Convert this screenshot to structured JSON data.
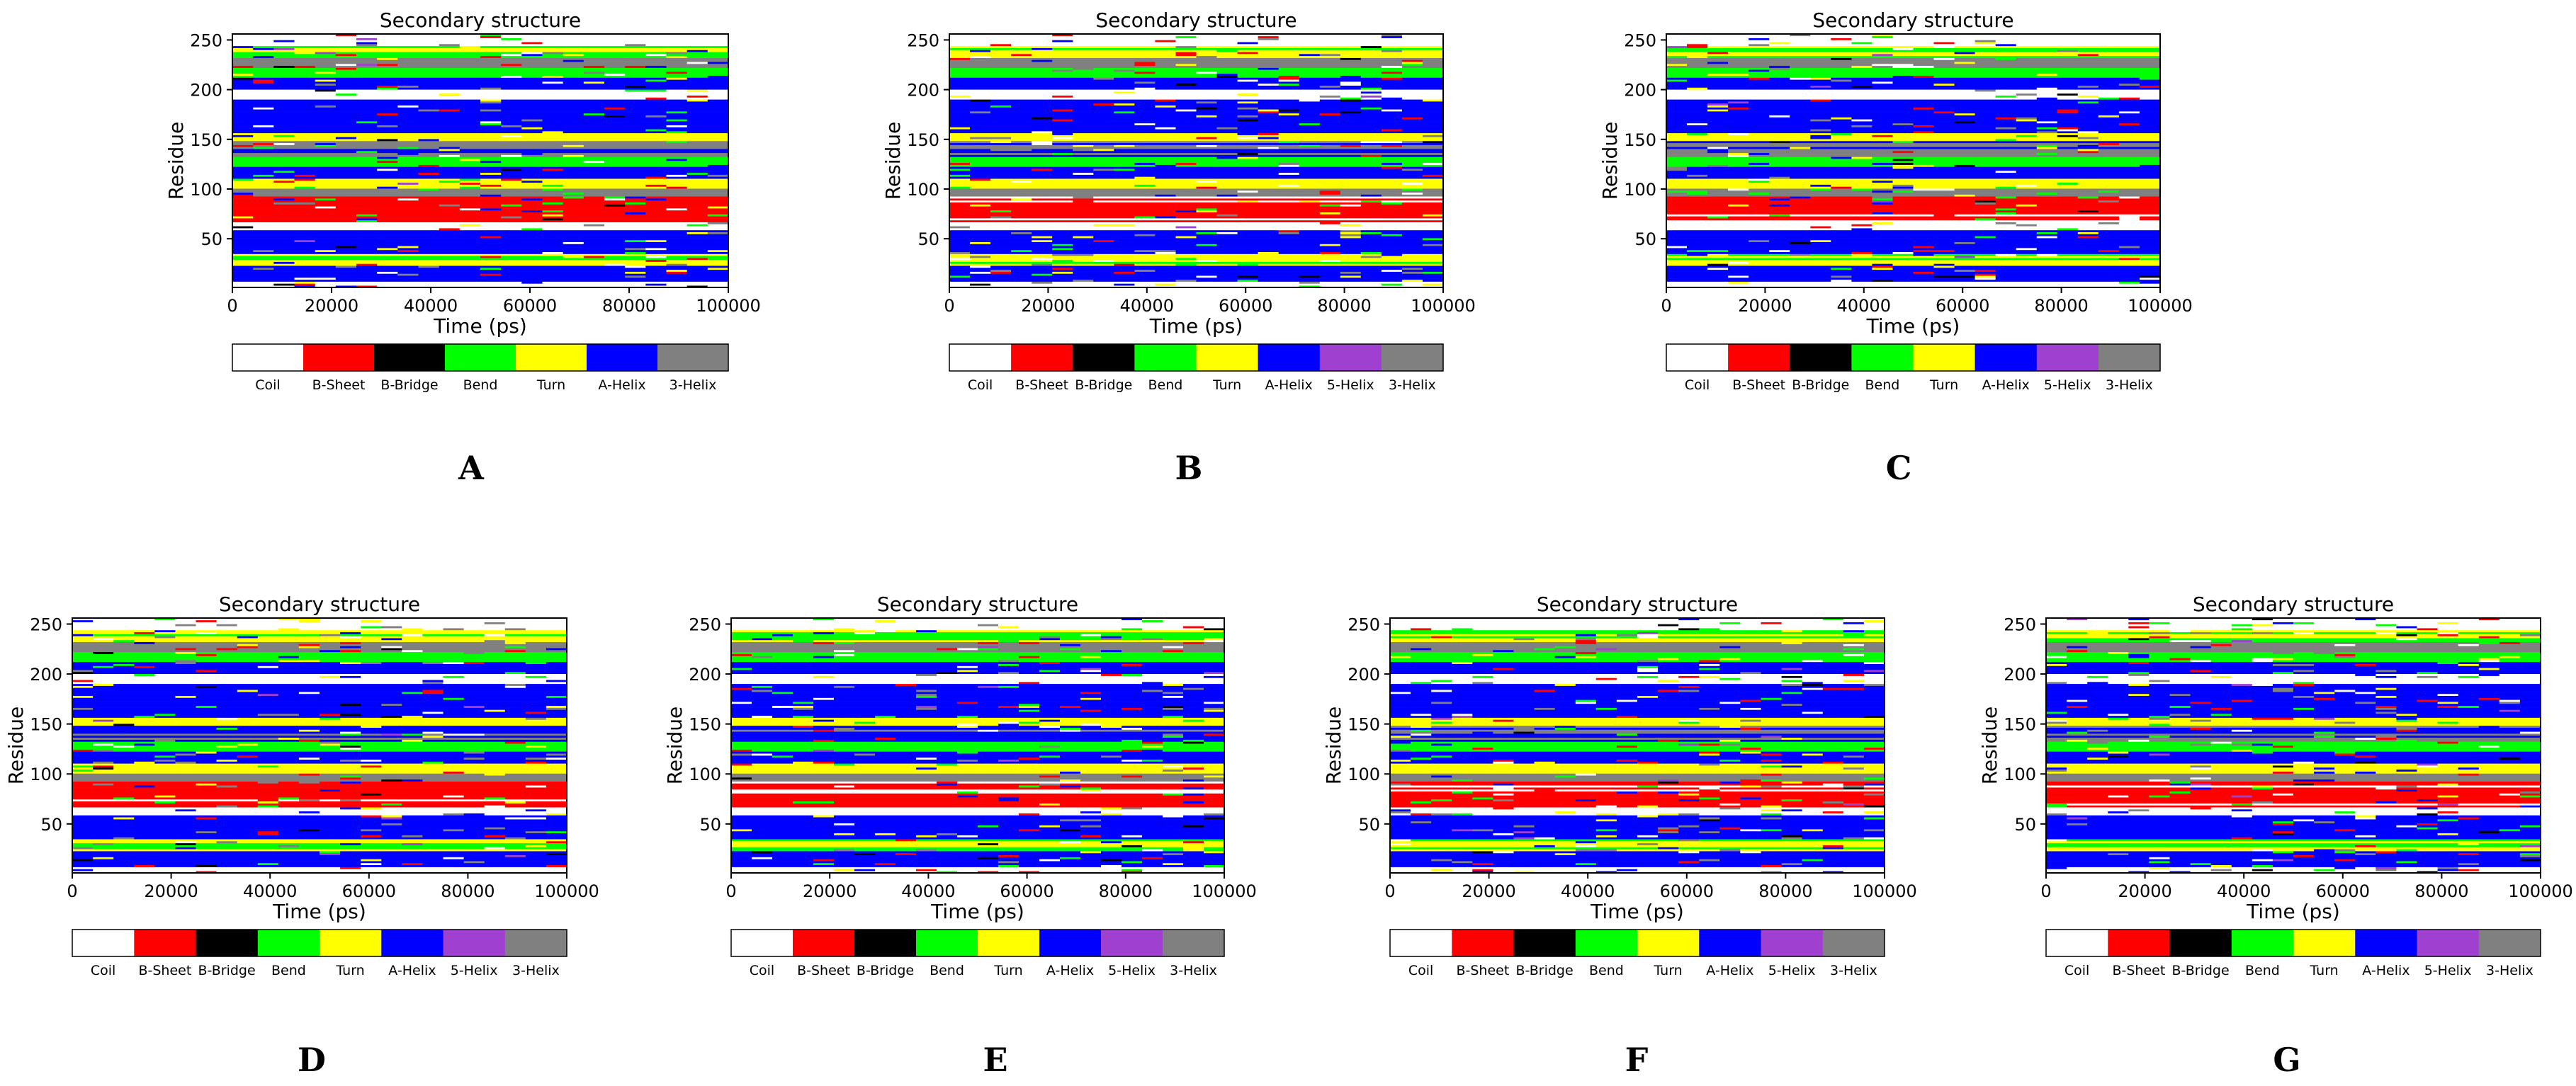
{
  "colors": {
    "Coil": "#ffffff",
    "B-Sheet": "#ff0000",
    "B-Bridge": "#000000",
    "Bend": "#00ff00",
    "Turn": "#ffff00",
    "A-Helix": "#0000ff",
    "5-Helix": "#a040d0",
    "3-Helix": "#808080"
  },
  "chart_data": [
    {
      "panel": "A",
      "type": "heatmap",
      "title": "Secondary structure",
      "xlabel": "Time (ps)",
      "ylabel": "Residue",
      "xlim": [
        0,
        100000
      ],
      "ylim": [
        1,
        256
      ],
      "xticks": [
        "0",
        "20000",
        "40000",
        "60000",
        "80000",
        "100000"
      ],
      "yticks": [
        "50",
        "100",
        "150",
        "200",
        "250"
      ],
      "legend": [
        "Coil",
        "B-Sheet",
        "B-Bridge",
        "Bend",
        "Turn",
        "A-Helix",
        "3-Helix"
      ],
      "seed": 11
    },
    {
      "panel": "B",
      "type": "heatmap",
      "title": "Secondary structure",
      "xlabel": "Time (ps)",
      "ylabel": "Residue",
      "xlim": [
        0,
        100000
      ],
      "ylim": [
        1,
        256
      ],
      "xticks": [
        "0",
        "20000",
        "40000",
        "60000",
        "80000",
        "100000"
      ],
      "yticks": [
        "50",
        "100",
        "150",
        "200",
        "250"
      ],
      "legend": [
        "Coil",
        "B-Sheet",
        "B-Bridge",
        "Bend",
        "Turn",
        "A-Helix",
        "5-Helix",
        "3-Helix"
      ],
      "seed": 23
    },
    {
      "panel": "C",
      "type": "heatmap",
      "title": "Secondary structure",
      "xlabel": "Time (ps)",
      "ylabel": "Residue",
      "xlim": [
        0,
        100000
      ],
      "ylim": [
        1,
        256
      ],
      "xticks": [
        "0",
        "20000",
        "40000",
        "60000",
        "80000",
        "100000"
      ],
      "yticks": [
        "50",
        "100",
        "150",
        "200",
        "250"
      ],
      "legend": [
        "Coil",
        "B-Sheet",
        "B-Bridge",
        "Bend",
        "Turn",
        "A-Helix",
        "5-Helix",
        "3-Helix"
      ],
      "seed": 37
    },
    {
      "panel": "D",
      "type": "heatmap",
      "title": "Secondary structure",
      "xlabel": "Time (ps)",
      "ylabel": "Residue",
      "xlim": [
        0,
        100000
      ],
      "ylim": [
        1,
        256
      ],
      "xticks": [
        "0",
        "20000",
        "40000",
        "60000",
        "80000",
        "100000"
      ],
      "yticks": [
        "50",
        "100",
        "150",
        "200",
        "250"
      ],
      "legend": [
        "Coil",
        "B-Sheet",
        "B-Bridge",
        "Bend",
        "Turn",
        "A-Helix",
        "5-Helix",
        "3-Helix"
      ],
      "seed": 41
    },
    {
      "panel": "E",
      "type": "heatmap",
      "title": "Secondary structure",
      "xlabel": "Time (ps)",
      "ylabel": "Residue",
      "xlim": [
        0,
        100000
      ],
      "ylim": [
        1,
        256
      ],
      "xticks": [
        "0",
        "20000",
        "40000",
        "60000",
        "80000",
        "100000"
      ],
      "yticks": [
        "50",
        "100",
        "150",
        "200",
        "250"
      ],
      "legend": [
        "Coil",
        "B-Sheet",
        "B-Bridge",
        "Bend",
        "Turn",
        "A-Helix",
        "5-Helix",
        "3-Helix"
      ],
      "seed": 53
    },
    {
      "panel": "F",
      "type": "heatmap",
      "title": "Secondary structure",
      "xlabel": "Time (ps)",
      "ylabel": "Residue",
      "xlim": [
        0,
        100000
      ],
      "ylim": [
        1,
        256
      ],
      "xticks": [
        "0",
        "20000",
        "40000",
        "60000",
        "80000",
        "100000"
      ],
      "yticks": [
        "50",
        "100",
        "150",
        "200",
        "250"
      ],
      "legend": [
        "Coil",
        "B-Sheet",
        "B-Bridge",
        "Bend",
        "Turn",
        "A-Helix",
        "5-Helix",
        "3-Helix"
      ],
      "seed": 67
    },
    {
      "panel": "G",
      "type": "heatmap",
      "title": "Secondary structure",
      "xlabel": "Time (ps)",
      "ylabel": "Residue",
      "xlim": [
        0,
        100000
      ],
      "ylim": [
        1,
        256
      ],
      "xticks": [
        "0",
        "20000",
        "40000",
        "60000",
        "80000",
        "100000"
      ],
      "yticks": [
        "50",
        "100",
        "150",
        "200",
        "250"
      ],
      "legend": [
        "Coil",
        "B-Sheet",
        "B-Bridge",
        "Bend",
        "Turn",
        "A-Helix",
        "5-Helix",
        "3-Helix"
      ],
      "seed": 79
    }
  ]
}
